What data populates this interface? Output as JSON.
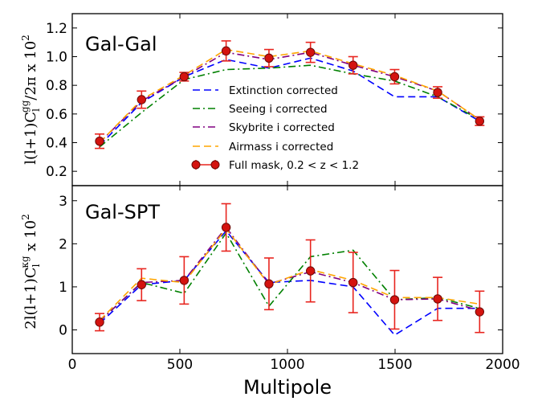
{
  "chart_data": [
    {
      "type": "line",
      "panel_label": "Gal-Gal",
      "ylabel": {
        "main": "l(l+1)C",
        "sub": "l",
        "sup": "gg",
        "tail": "/2π x 10",
        "tail_sup": "2"
      },
      "xlabel": "",
      "xlim": [
        0,
        2000
      ],
      "ylim": [
        0.1,
        1.3
      ],
      "yticks": [
        0.2,
        0.4,
        0.6,
        0.8,
        1.0,
        1.2
      ],
      "ytick_labels": [
        "0.2",
        "0.4",
        "0.6",
        "0.8",
        "1.0",
        "1.2"
      ],
      "x": [
        127,
        322,
        520,
        715,
        914,
        1107,
        1305,
        1498,
        1698,
        1893
      ],
      "series": [
        {
          "name": "Extinction corrected",
          "style": "dashed",
          "color": "#0000ff",
          "values": [
            0.38,
            0.68,
            0.86,
            0.98,
            0.92,
            0.99,
            0.9,
            0.72,
            0.72,
            0.55
          ]
        },
        {
          "name": "Seeing i corrected",
          "style": "dashdot",
          "color": "#008000",
          "values": [
            0.37,
            0.61,
            0.84,
            0.91,
            0.92,
            0.94,
            0.88,
            0.83,
            0.72,
            0.56
          ]
        },
        {
          "name": "Skybrite i corrected",
          "style": "dashdot",
          "color": "#800080",
          "values": [
            0.4,
            0.69,
            0.86,
            1.03,
            0.98,
            1.03,
            0.94,
            0.86,
            0.76,
            0.56
          ]
        },
        {
          "name": "Airmass i corrected",
          "style": "dashed",
          "color": "#ffa500",
          "values": [
            0.4,
            0.7,
            0.87,
            1.05,
            1.0,
            1.04,
            0.95,
            0.87,
            0.76,
            0.56
          ]
        }
      ],
      "points": {
        "name": "Full mask, 0.2 < z < 1.2",
        "values": [
          0.41,
          0.7,
          0.86,
          1.04,
          0.99,
          1.03,
          0.94,
          0.86,
          0.75,
          0.55
        ],
        "errors": [
          0.05,
          0.06,
          0.03,
          0.07,
          0.06,
          0.07,
          0.06,
          0.05,
          0.04,
          0.03
        ]
      },
      "legend": "center-right"
    },
    {
      "type": "line",
      "panel_label": "Gal-SPT",
      "ylabel": {
        "main": "2l(l+1)C",
        "sub": "l",
        "sup": "κg",
        "tail": " x 10",
        "tail_sup": "2"
      },
      "xlabel": "Multipole",
      "xlim": [
        0,
        2000
      ],
      "ylim": [
        -0.55,
        3.35
      ],
      "yticks": [
        0,
        1,
        2,
        3
      ],
      "ytick_labels": [
        "0",
        "1",
        "2",
        "3"
      ],
      "xticks": [
        0,
        500,
        1000,
        1500,
        2000
      ],
      "xtick_labels": [
        "0",
        "500",
        "1000",
        "1500",
        "2000"
      ],
      "x": [
        127,
        322,
        520,
        715,
        914,
        1107,
        1305,
        1498,
        1698,
        1893
      ],
      "series": [
        {
          "name": "Extinction corrected",
          "style": "dashed",
          "color": "#0000ff",
          "values": [
            0.15,
            1.05,
            1.15,
            2.3,
            1.1,
            1.15,
            1.0,
            -0.12,
            0.5,
            0.5
          ]
        },
        {
          "name": "Seeing i corrected",
          "style": "dashdot",
          "color": "#008000",
          "values": [
            0.2,
            1.1,
            0.85,
            2.25,
            0.55,
            1.7,
            1.85,
            0.7,
            0.75,
            0.5
          ]
        },
        {
          "name": "Skybrite i corrected",
          "style": "dashdot",
          "color": "#800080",
          "values": [
            0.2,
            1.1,
            1.15,
            2.38,
            1.07,
            1.35,
            1.1,
            0.7,
            0.72,
            0.45
          ]
        },
        {
          "name": "Airmass i corrected",
          "style": "dashed",
          "color": "#ffa500",
          "values": [
            0.22,
            1.2,
            1.1,
            2.35,
            1.05,
            1.4,
            1.15,
            0.75,
            0.75,
            0.6
          ]
        }
      ],
      "points": {
        "name": "Full mask, 0.2 < z < 1.2",
        "values": [
          0.18,
          1.05,
          1.15,
          2.38,
          1.07,
          1.37,
          1.1,
          0.7,
          0.72,
          0.42
        ],
        "errors": [
          0.2,
          0.37,
          0.55,
          0.55,
          0.6,
          0.72,
          0.7,
          0.68,
          0.5,
          0.48
        ]
      }
    }
  ]
}
